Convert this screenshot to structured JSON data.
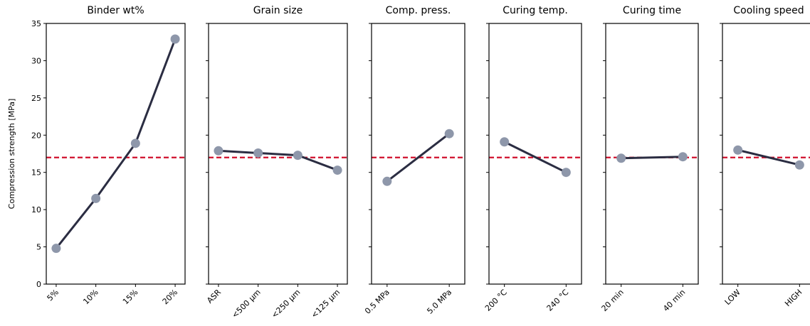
{
  "chart_data": [
    {
      "type": "line",
      "title": "Binder wt%",
      "ylabel": "Compression strength [MPa]",
      "categories": [
        "5%",
        "10%",
        "15%",
        "20%"
      ],
      "values": [
        4.8,
        11.5,
        18.9,
        32.9
      ],
      "ylim": [
        0,
        35
      ],
      "yticks": [
        0,
        5,
        10,
        15,
        20,
        25,
        30,
        35
      ],
      "reference_line": 17.0,
      "color": "#2b2d42",
      "marker_color": "#8e97aa",
      "reference_color": "#d0102c"
    },
    {
      "type": "line",
      "title": "Grain size",
      "categories": [
        "ASR",
        "<500 µm",
        "<250 µm",
        "<125 µm"
      ],
      "values": [
        17.9,
        17.6,
        17.3,
        15.3
      ],
      "ylim": [
        0,
        35
      ],
      "yticks": [
        0,
        5,
        10,
        15,
        20,
        25,
        30,
        35
      ],
      "reference_line": 17.0,
      "color": "#2b2d42",
      "marker_color": "#8e97aa",
      "reference_color": "#d0102c"
    },
    {
      "type": "line",
      "title": "Comp. press.",
      "categories": [
        "0.5 MPa",
        "5.0 MPa"
      ],
      "values": [
        13.8,
        20.2
      ],
      "ylim": [
        0,
        35
      ],
      "yticks": [
        0,
        5,
        10,
        15,
        20,
        25,
        30,
        35
      ],
      "reference_line": 17.0,
      "color": "#2b2d42",
      "marker_color": "#8e97aa",
      "reference_color": "#d0102c"
    },
    {
      "type": "line",
      "title": "Curing temp.",
      "categories": [
        "200 °C",
        "240 °C"
      ],
      "values": [
        19.1,
        15.0
      ],
      "ylim": [
        0,
        35
      ],
      "yticks": [
        0,
        5,
        10,
        15,
        20,
        25,
        30,
        35
      ],
      "reference_line": 17.0,
      "color": "#2b2d42",
      "marker_color": "#8e97aa",
      "reference_color": "#d0102c"
    },
    {
      "type": "line",
      "title": "Curing time",
      "categories": [
        "20 min",
        "40 min"
      ],
      "values": [
        16.9,
        17.1
      ],
      "ylim": [
        0,
        35
      ],
      "yticks": [
        0,
        5,
        10,
        15,
        20,
        25,
        30,
        35
      ],
      "reference_line": 17.0,
      "color": "#2b2d42",
      "marker_color": "#8e97aa",
      "reference_color": "#d0102c"
    },
    {
      "type": "line",
      "title": "Cooling speed",
      "categories": [
        "LOW",
        "HIGH"
      ],
      "values": [
        18.0,
        16.0
      ],
      "ylim": [
        0,
        35
      ],
      "yticks": [
        0,
        5,
        10,
        15,
        20,
        25,
        30,
        35
      ],
      "reference_line": 17.0,
      "color": "#2b2d42",
      "marker_color": "#8e97aa",
      "reference_color": "#d0102c"
    }
  ]
}
